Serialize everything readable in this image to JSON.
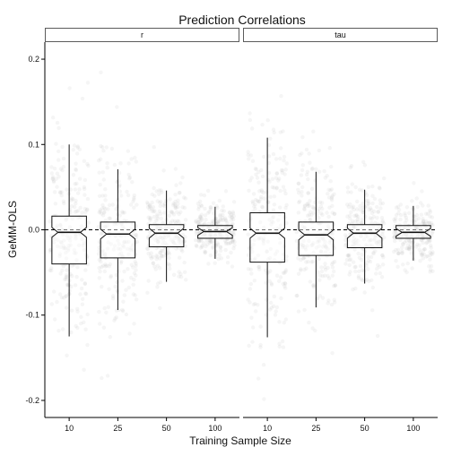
{
  "chart_data": {
    "type": "boxplot",
    "title": "Prediction Correlations",
    "xlabel": "Training Sample Size",
    "ylabel": "GeMM-OLS",
    "categories": [
      "10",
      "25",
      "50",
      "100"
    ],
    "ylim": [
      -0.22,
      0.22
    ],
    "yticks": [
      -0.2,
      -0.1,
      0.0,
      0.1,
      0.2
    ],
    "ytick_labels": [
      "-0.2",
      "-0.1",
      "0.0",
      "0.1",
      "0.2"
    ],
    "reference_line": {
      "y": 0.0,
      "style": "dashed"
    },
    "points_shown": true,
    "notched": true,
    "grid": false,
    "panels": [
      {
        "label": "r",
        "boxes": [
          {
            "category": "10",
            "whisker_low": -0.125,
            "q1": -0.04,
            "median": -0.003,
            "q3": 0.016,
            "whisker_high": 0.1
          },
          {
            "category": "25",
            "whisker_low": -0.094,
            "q1": -0.033,
            "median": -0.005,
            "q3": 0.009,
            "whisker_high": 0.071
          },
          {
            "category": "50",
            "whisker_low": -0.061,
            "q1": -0.02,
            "median": -0.004,
            "q3": 0.006,
            "whisker_high": 0.046
          },
          {
            "category": "100",
            "whisker_low": -0.034,
            "q1": -0.01,
            "median": -0.002,
            "q3": 0.005,
            "whisker_high": 0.027
          }
        ]
      },
      {
        "label": "tau",
        "boxes": [
          {
            "category": "10",
            "whisker_low": -0.126,
            "q1": -0.038,
            "median": -0.004,
            "q3": 0.02,
            "whisker_high": 0.108
          },
          {
            "category": "25",
            "whisker_low": -0.091,
            "q1": -0.03,
            "median": -0.006,
            "q3": 0.009,
            "whisker_high": 0.068
          },
          {
            "category": "50",
            "whisker_low": -0.063,
            "q1": -0.021,
            "median": -0.004,
            "q3": 0.006,
            "whisker_high": 0.047
          },
          {
            "category": "100",
            "whisker_low": -0.036,
            "q1": -0.01,
            "median": -0.003,
            "q3": 0.005,
            "whisker_high": 0.028
          }
        ]
      }
    ]
  },
  "colors": {
    "point": "#b0b0b0",
    "box_stroke": "#111111",
    "box_fill": "#ffffff",
    "strip_stroke": "#333333",
    "axis": "#000000"
  }
}
